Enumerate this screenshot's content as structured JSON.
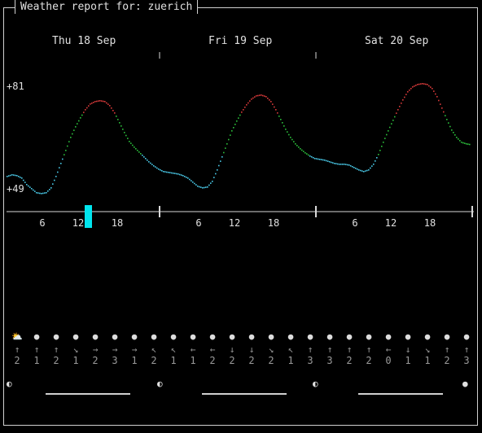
{
  "header": {
    "title": "Weather report for: zuerich"
  },
  "days": [
    "Thu 18 Sep",
    "Fri 19 Sep",
    "Sat 20 Sep"
  ],
  "temperature": {
    "max_label": "+81",
    "min_label": "+49"
  },
  "hour_ticks": [
    "6",
    "12",
    "18",
    "6",
    "12",
    "18",
    "6",
    "12",
    "18"
  ],
  "current_marker": {
    "color": "#00e5ee"
  },
  "weather_symbols": [
    "⛅",
    "●",
    "●",
    "●",
    "●",
    "●",
    "●",
    "●",
    "●",
    "●",
    "●",
    "●",
    "●",
    "●",
    "●",
    "●",
    "●",
    "●",
    "●",
    "●",
    "●",
    "●",
    "●",
    "●"
  ],
  "wind_directions": [
    "↑",
    "↑",
    "↑",
    "↘",
    "→",
    "→",
    "→",
    "↖",
    "↖",
    "←",
    "←",
    "↓",
    "↓",
    "↘",
    "↖",
    "↑",
    "↑",
    "↑",
    "↑",
    "←",
    "↓",
    "↘",
    "↑",
    "↑"
  ],
  "wind_speeds": [
    "2",
    "1",
    "2",
    "1",
    "2",
    "3",
    "1",
    "2",
    "1",
    "1",
    "2",
    "2",
    "2",
    "2",
    "1",
    "3",
    "3",
    "2",
    "2",
    "0",
    "1",
    "1",
    "2",
    "3"
  ],
  "moon_phases": [
    "◐",
    "◐",
    "◐",
    "●"
  ],
  "colors": {
    "cold": "#49c8e6",
    "mild": "#2bbf3b",
    "warm": "#d83a3a",
    "axis": "#d8d8d8"
  }
}
